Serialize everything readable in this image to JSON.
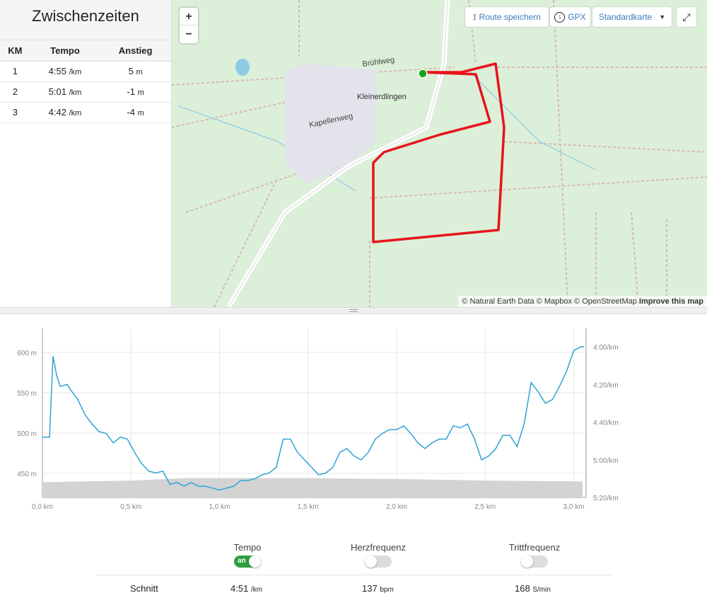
{
  "splits": {
    "title": "Zwischenzeiten",
    "headers": [
      "KM",
      "Tempo",
      "Anstieg"
    ],
    "rows": [
      {
        "km": "1",
        "tempo": "4:55",
        "tempo_unit": "/km",
        "climb": "5",
        "climb_unit": "m"
      },
      {
        "km": "2",
        "tempo": "5:01",
        "tempo_unit": "/km",
        "climb": "-1",
        "climb_unit": "m"
      },
      {
        "km": "3",
        "tempo": "4:42",
        "tempo_unit": "/km",
        "climb": "-4",
        "climb_unit": "m"
      }
    ]
  },
  "map": {
    "zoom_in": "+",
    "zoom_out": "−",
    "save_route": "Route speichern",
    "gpx": "GPX",
    "map_style": "Standardkarte",
    "labels": {
      "street1": "Brühlweg",
      "town": "Kleinerdlingen",
      "street2": "Kapellenweg"
    },
    "attribution": "© Natural Earth Data © Mapbox © OpenStreetMap",
    "improve": "Improve this map",
    "route_color": "#e8141b",
    "start_color": "#1aa31a"
  },
  "chart_data": {
    "type": "line",
    "x_ticks": [
      "0,0 km",
      "0,5 km",
      "1,0 km",
      "1,5 km",
      "2,0 km",
      "2,5 km",
      "3,0 km"
    ],
    "y_left_ticks": [
      "450 m",
      "500 m",
      "550 m",
      "600 m"
    ],
    "y_right_ticks": [
      "4:00/km",
      "4:20/km",
      "4:40/km",
      "5:00/km",
      "5:20/km"
    ],
    "xlim": [
      0,
      3.07
    ],
    "y_left_lim": [
      420,
      630
    ],
    "y_right_lim": [
      "4:00",
      "5:20"
    ],
    "grid": true,
    "series": [
      {
        "kind": "area",
        "axis": "left",
        "unit": "m",
        "color": "#d3d3d3",
        "points": [
          [
            0,
            439
          ],
          [
            0.5,
            441
          ],
          [
            0.8,
            444
          ],
          [
            1.5,
            444
          ],
          [
            2.0,
            443
          ],
          [
            2.5,
            441
          ],
          [
            3.05,
            440
          ]
        ]
      },
      {
        "kind": "line",
        "axis": "right",
        "unit": "/km",
        "color": "#2ea3d6",
        "points": [
          [
            0,
            "4:48"
          ],
          [
            0.04,
            "4:48"
          ],
          [
            0.06,
            "4:05"
          ],
          [
            0.08,
            "4:15"
          ],
          [
            0.1,
            "4:21"
          ],
          [
            0.14,
            "4:20"
          ],
          [
            0.16,
            "4:23"
          ],
          [
            0.2,
            "4:28"
          ],
          [
            0.24,
            "4:36"
          ],
          [
            0.28,
            "4:41"
          ],
          [
            0.32,
            "4:45"
          ],
          [
            0.36,
            "4:46"
          ],
          [
            0.4,
            "4:51"
          ],
          [
            0.44,
            "4:48"
          ],
          [
            0.48,
            "4:49"
          ],
          [
            0.52,
            "4:56"
          ],
          [
            0.56,
            "5:02"
          ],
          [
            0.6,
            "5:06"
          ],
          [
            0.64,
            "5:07"
          ],
          [
            0.68,
            "5:06"
          ],
          [
            0.72,
            "5:13"
          ],
          [
            0.76,
            "5:12"
          ],
          [
            0.8,
            "5:14"
          ],
          [
            0.84,
            "5:12"
          ],
          [
            0.88,
            "5:14"
          ],
          [
            0.92,
            "5:14"
          ],
          [
            0.96,
            "5:15"
          ],
          [
            1.0,
            "5:16"
          ],
          [
            1.04,
            "5:15"
          ],
          [
            1.08,
            "5:14"
          ],
          [
            1.12,
            "5:11"
          ],
          [
            1.16,
            "5:11"
          ],
          [
            1.2,
            "5:10"
          ],
          [
            1.24,
            "5:08"
          ],
          [
            1.28,
            "5:07"
          ],
          [
            1.32,
            "5:04"
          ],
          [
            1.36,
            "4:49"
          ],
          [
            1.4,
            "4:49"
          ],
          [
            1.44,
            "4:56"
          ],
          [
            1.48,
            "5:00"
          ],
          [
            1.52,
            "5:04"
          ],
          [
            1.56,
            "5:08"
          ],
          [
            1.6,
            "5:07"
          ],
          [
            1.64,
            "5:04"
          ],
          [
            1.68,
            "4:56"
          ],
          [
            1.72,
            "4:54"
          ],
          [
            1.76,
            "4:58"
          ],
          [
            1.8,
            "5:00"
          ],
          [
            1.84,
            "4:56"
          ],
          [
            1.88,
            "4:49"
          ],
          [
            1.92,
            "4:46"
          ],
          [
            1.96,
            "4:44"
          ],
          [
            2.0,
            "4:44"
          ],
          [
            2.04,
            "4:42"
          ],
          [
            2.08,
            "4:46"
          ],
          [
            2.12,
            "4:51"
          ],
          [
            2.16,
            "4:54"
          ],
          [
            2.2,
            "4:51"
          ],
          [
            2.24,
            "4:49"
          ],
          [
            2.28,
            "4:49"
          ],
          [
            2.32,
            "4:42"
          ],
          [
            2.36,
            "4:43"
          ],
          [
            2.4,
            "4:41"
          ],
          [
            2.44,
            "4:49"
          ],
          [
            2.48,
            "5:00"
          ],
          [
            2.52,
            "4:58"
          ],
          [
            2.56,
            "4:54"
          ],
          [
            2.6,
            "4:47"
          ],
          [
            2.64,
            "4:47"
          ],
          [
            2.68,
            "4:53"
          ],
          [
            2.72,
            "4:41"
          ],
          [
            2.76,
            "4:19"
          ],
          [
            2.8,
            "4:24"
          ],
          [
            2.84,
            "4:30"
          ],
          [
            2.88,
            "4:28"
          ],
          [
            2.92,
            "4:21"
          ],
          [
            2.96,
            "4:13"
          ],
          [
            3.0,
            "4:02"
          ],
          [
            3.04,
            "4:00"
          ],
          [
            3.06,
            "4:00"
          ]
        ]
      }
    ]
  },
  "toggles": [
    {
      "label": "Tempo",
      "state": "an",
      "on": true
    },
    {
      "label": "Herzfrequenz",
      "on": false
    },
    {
      "label": "Trittfrequenz",
      "on": false
    }
  ],
  "average": {
    "label": "Schnitt",
    "tempo": "4:51",
    "tempo_unit": "/km",
    "hr": "137",
    "hr_unit": "bpm",
    "cadence": "168",
    "cadence_unit": "S/min"
  }
}
